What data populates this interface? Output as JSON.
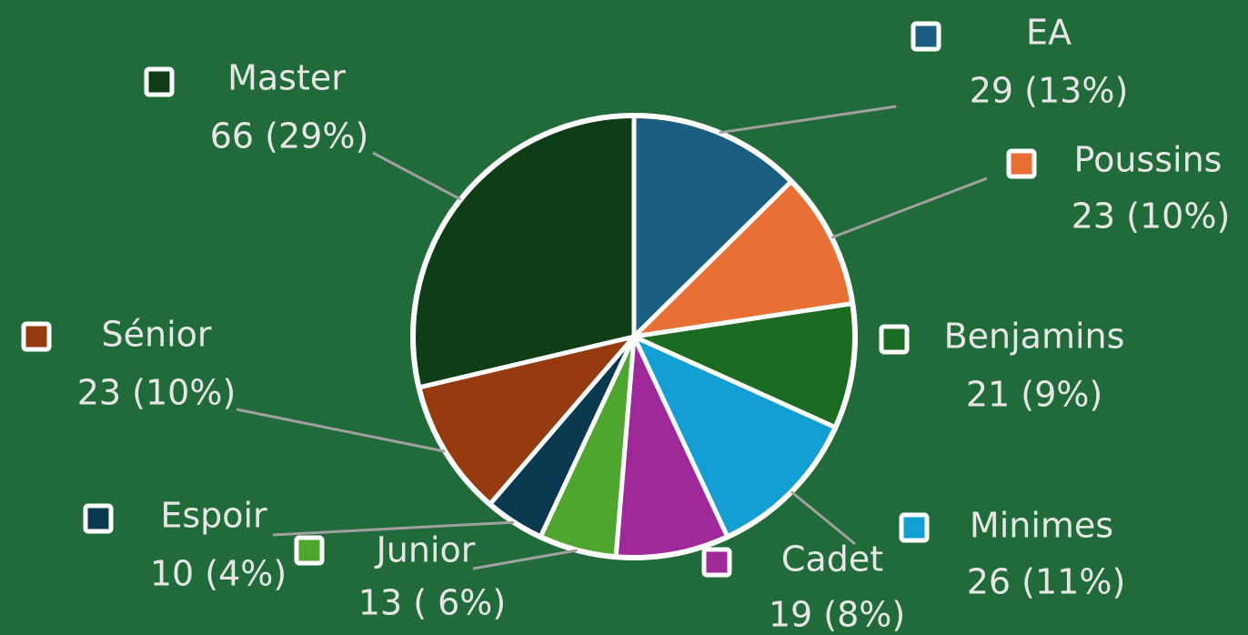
{
  "chart_data": {
    "type": "pie",
    "categories": [
      "EA",
      "Poussins",
      "Benjamins",
      "Minimes",
      "Cadet",
      "Junior",
      "Espoir",
      "Sénior",
      "Master"
    ],
    "values": [
      29,
      23,
      21,
      26,
      19,
      13,
      10,
      23,
      66
    ],
    "value_labels": [
      "29 (13%)",
      "23 (10%)",
      "21 (9%)",
      "26 (11%)",
      "19 (8%)",
      "13 ( 6%)",
      "10 (4%)",
      "23 (10%)",
      "66 (29%)"
    ],
    "colors": [
      "#1a5e82",
      "#e87035",
      "#1b6b22",
      "#139fd3",
      "#a0299a",
      "#4ea62f",
      "#0b3a50",
      "#963b10",
      "#0f3d15"
    ]
  }
}
